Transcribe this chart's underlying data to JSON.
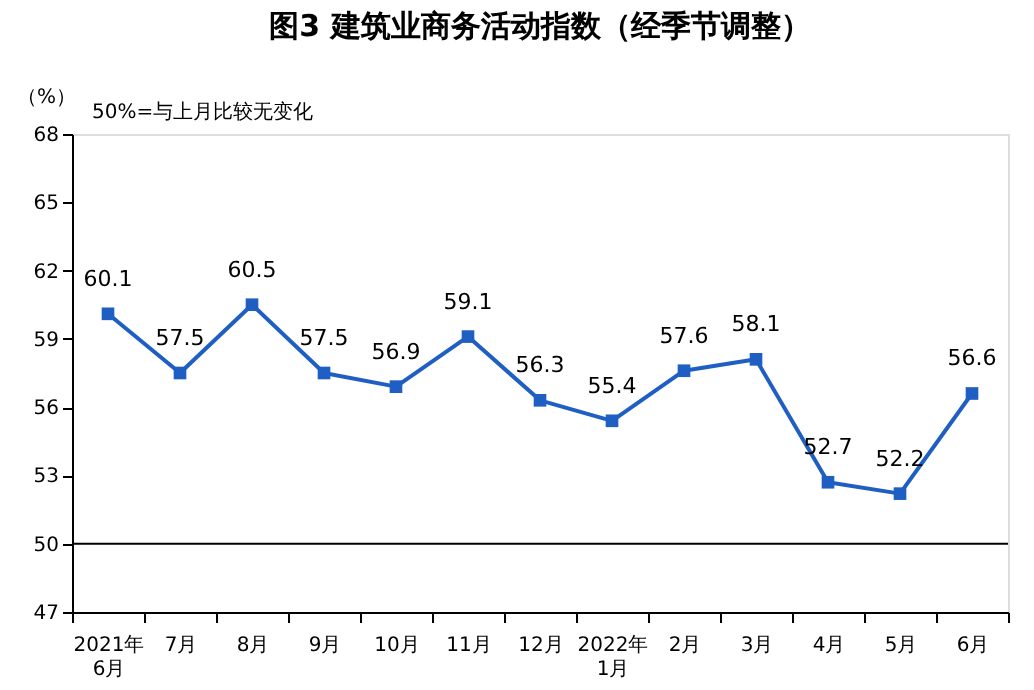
{
  "chart_data": {
    "type": "line",
    "title": "图3  建筑业商务活动指数（经季节调整）",
    "ylabel": "（%）",
    "annotations": [
      "50%=与上月比较无变化"
    ],
    "categories": [
      "2021年\n6月",
      "7月",
      "8月",
      "9月",
      "10月",
      "11月",
      "12月",
      "2022年\n1月",
      "2月",
      "3月",
      "4月",
      "5月",
      "6月"
    ],
    "series": [
      {
        "color": "#1f5fc4",
        "values": [
          60.1,
          57.5,
          60.5,
          57.5,
          56.9,
          59.1,
          56.3,
          55.4,
          57.6,
          58.1,
          52.7,
          52.2,
          56.6
        ]
      }
    ],
    "ylim": [
      47,
      68
    ],
    "yticks": [
      47,
      50,
      53,
      56,
      59,
      62,
      65,
      68
    ],
    "ref_lines": [
      {
        "axis": "y",
        "value": 50,
        "color": "#000000"
      }
    ],
    "data_labels": true,
    "marker": "square",
    "line_style": "solid",
    "grid": false
  }
}
